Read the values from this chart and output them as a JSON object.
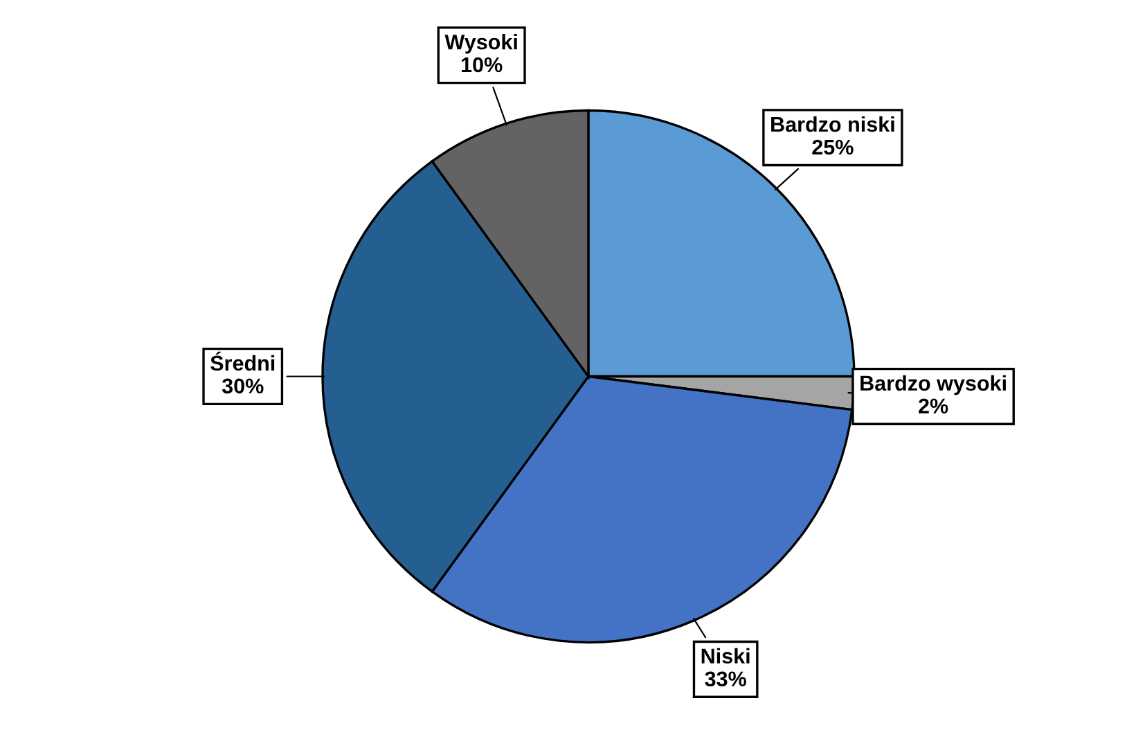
{
  "chart_data": {
    "type": "pie",
    "categories": [
      "Bardzo niski",
      "Bardzo wysoki",
      "Niski",
      "Średni",
      "Wysoki"
    ],
    "values": [
      25,
      2,
      33,
      30,
      10
    ],
    "value_labels": [
      "25%",
      "2%",
      "33%",
      "30%",
      "10%"
    ],
    "colors": [
      "#5b9bd5",
      "#a5a5a5",
      "#4472c4",
      "#255e91",
      "#636363"
    ],
    "legend": false
  }
}
